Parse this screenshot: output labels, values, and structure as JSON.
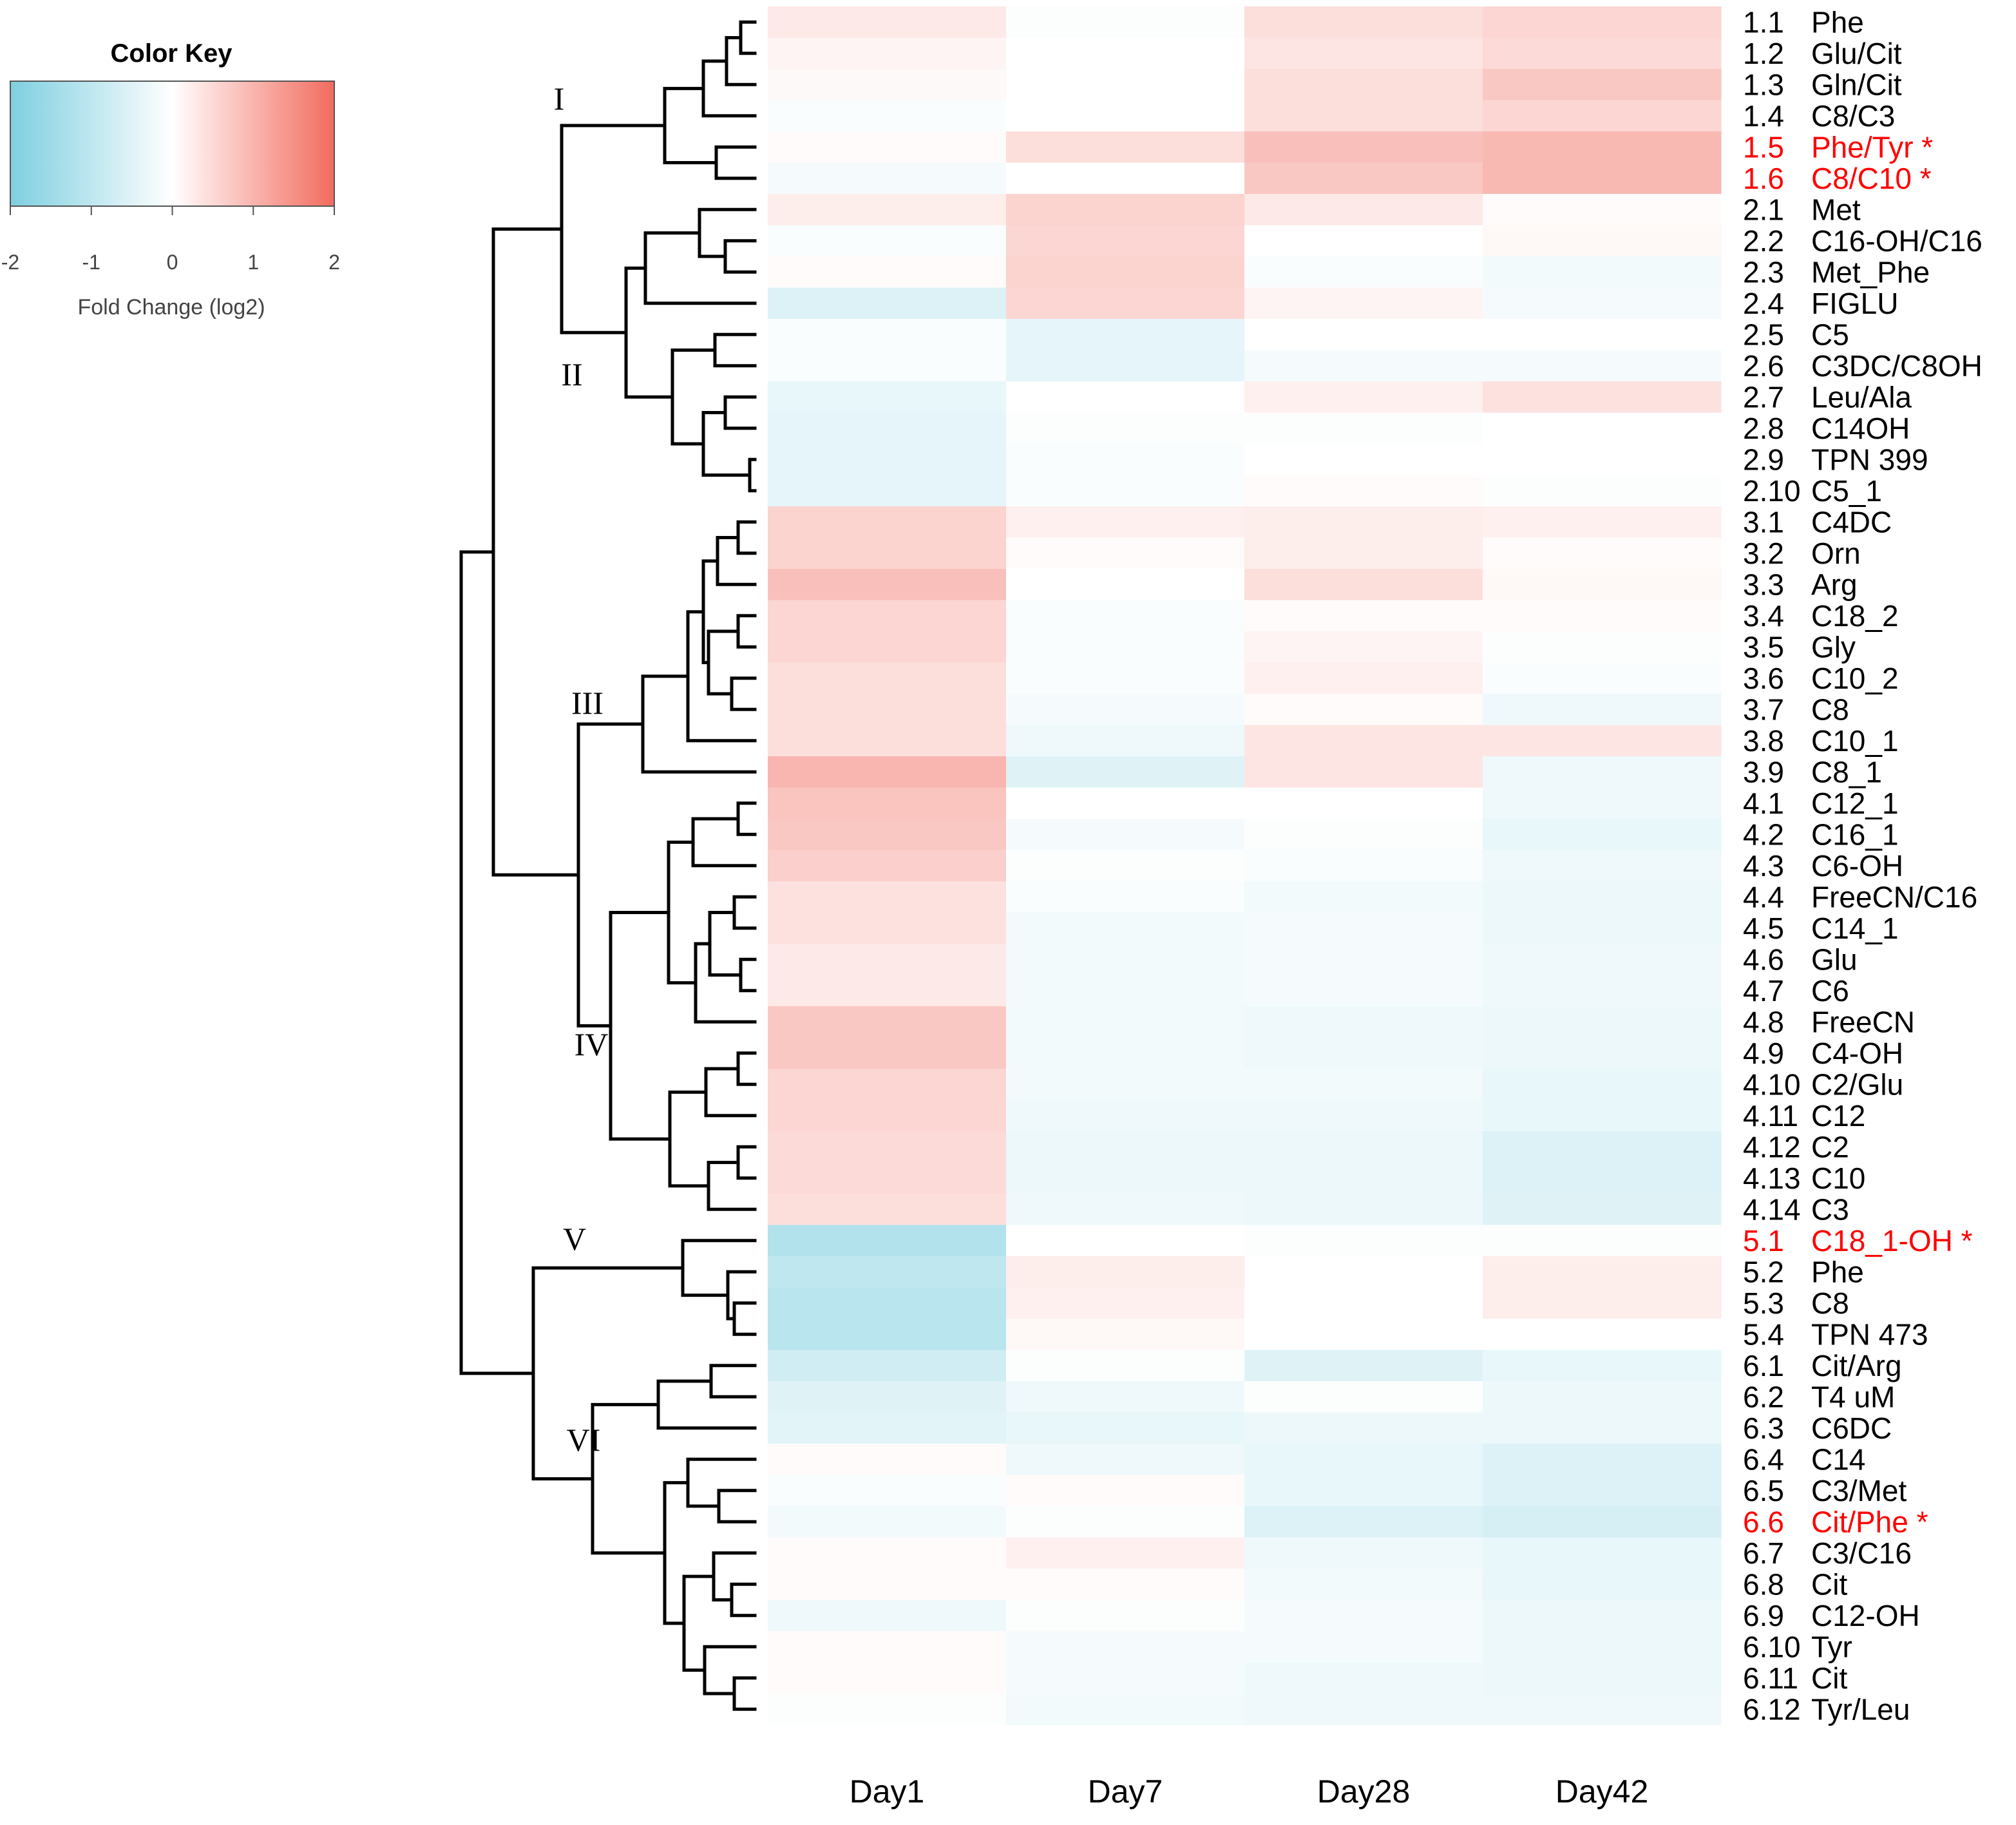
{
  "chart_data": {
    "type": "heatmap",
    "title": "",
    "columns": [
      "Day1",
      "Day7",
      "Day28",
      "Day42"
    ],
    "color_key": {
      "title": "Color Key",
      "label": "Fold Change (log2)",
      "range": [
        -2,
        2
      ],
      "ticks": [
        "-2",
        "-1",
        "0",
        "1",
        "2"
      ],
      "low_color": "#7ecfe0",
      "mid_color": "#ffffff",
      "high_color": "#f26b5e"
    },
    "highlight_color": "#ff0000",
    "clusters": [
      {
        "label": "I",
        "rows": [
          "1.1",
          "1.6"
        ]
      },
      {
        "label": "II",
        "rows": [
          "2.1",
          "2.10"
        ]
      },
      {
        "label": "III",
        "rows": [
          "3.1",
          "3.9"
        ]
      },
      {
        "label": "IV",
        "rows": [
          "4.1",
          "4.14"
        ]
      },
      {
        "label": "V",
        "rows": [
          "5.1",
          "5.4"
        ]
      },
      {
        "label": "VI",
        "rows": [
          "6.1",
          "6.12"
        ]
      }
    ],
    "rows": [
      {
        "id": "1.1",
        "name": "Phe",
        "values": [
          0.3,
          -0.05,
          0.45,
          0.55
        ],
        "highlight": false
      },
      {
        "id": "1.2",
        "name": "Glu/Cit",
        "values": [
          0.15,
          0.0,
          0.35,
          0.5
        ],
        "highlight": false
      },
      {
        "id": "1.3",
        "name": "Gln/Cit",
        "values": [
          0.08,
          0.0,
          0.45,
          0.75
        ],
        "highlight": false
      },
      {
        "id": "1.4",
        "name": "C8/C3",
        "values": [
          -0.1,
          0.0,
          0.45,
          0.55
        ],
        "highlight": false
      },
      {
        "id": "1.5",
        "name": "Phe/Tyr *",
        "values": [
          0.05,
          0.45,
          0.85,
          0.95
        ],
        "highlight": true
      },
      {
        "id": "1.6",
        "name": "C8/C10 *",
        "values": [
          -0.15,
          0.0,
          0.75,
          0.95
        ],
        "highlight": true
      },
      {
        "id": "2.1",
        "name": "Met",
        "values": [
          0.25,
          0.6,
          0.3,
          0.05
        ],
        "highlight": false
      },
      {
        "id": "2.2",
        "name": "C16-OH/C16",
        "values": [
          -0.1,
          0.55,
          0.0,
          0.1
        ],
        "highlight": false
      },
      {
        "id": "2.3",
        "name": "Met_Phe",
        "values": [
          0.05,
          0.6,
          -0.1,
          -0.2
        ],
        "highlight": false
      },
      {
        "id": "2.4",
        "name": "FIGLU",
        "values": [
          -0.55,
          0.55,
          0.15,
          -0.15
        ],
        "highlight": false
      },
      {
        "id": "2.5",
        "name": "C5",
        "values": [
          -0.1,
          -0.4,
          0.0,
          0.0
        ],
        "highlight": false
      },
      {
        "id": "2.6",
        "name": "C3DC/C8OH",
        "values": [
          -0.1,
          -0.4,
          -0.15,
          -0.15
        ],
        "highlight": false
      },
      {
        "id": "2.7",
        "name": "Leu/Ala",
        "values": [
          -0.35,
          0.0,
          0.2,
          0.4
        ],
        "highlight": false
      },
      {
        "id": "2.8",
        "name": "C14OH",
        "values": [
          -0.4,
          -0.05,
          -0.05,
          0.0
        ],
        "highlight": false
      },
      {
        "id": "2.9",
        "name": "TPN 399",
        "values": [
          -0.4,
          -0.1,
          0.0,
          0.0
        ],
        "highlight": false
      },
      {
        "id": "2.10",
        "name": "C5_1",
        "values": [
          -0.4,
          -0.1,
          0.05,
          -0.05
        ],
        "highlight": false
      },
      {
        "id": "3.1",
        "name": "C4DC",
        "values": [
          0.6,
          0.2,
          0.25,
          0.2
        ],
        "highlight": false
      },
      {
        "id": "3.2",
        "name": "Orn",
        "values": [
          0.6,
          0.05,
          0.25,
          0.05
        ],
        "highlight": false
      },
      {
        "id": "3.3",
        "name": "Arg",
        "values": [
          0.85,
          0.0,
          0.45,
          0.1
        ],
        "highlight": false
      },
      {
        "id": "3.4",
        "name": "C18_2",
        "values": [
          0.55,
          -0.1,
          0.05,
          0.05
        ],
        "highlight": false
      },
      {
        "id": "3.5",
        "name": "Gly",
        "values": [
          0.55,
          -0.1,
          0.15,
          -0.05
        ],
        "highlight": false
      },
      {
        "id": "3.6",
        "name": "C10_2",
        "values": [
          0.45,
          -0.1,
          0.2,
          -0.1
        ],
        "highlight": false
      },
      {
        "id": "3.7",
        "name": "C8",
        "values": [
          0.45,
          -0.15,
          0.05,
          -0.25
        ],
        "highlight": false
      },
      {
        "id": "3.8",
        "name": "C10_1",
        "values": [
          0.45,
          -0.25,
          0.35,
          0.35
        ],
        "highlight": false
      },
      {
        "id": "3.9",
        "name": "C8_1",
        "values": [
          1.0,
          -0.5,
          0.35,
          -0.25
        ],
        "highlight": false
      },
      {
        "id": "4.1",
        "name": "C12_1",
        "values": [
          0.8,
          0.0,
          0.0,
          -0.25
        ],
        "highlight": false
      },
      {
        "id": "4.2",
        "name": "C16_1",
        "values": [
          0.75,
          -0.15,
          -0.05,
          -0.35
        ],
        "highlight": false
      },
      {
        "id": "4.3",
        "name": "C6-OH",
        "values": [
          0.65,
          -0.05,
          -0.1,
          -0.25
        ],
        "highlight": false
      },
      {
        "id": "4.4",
        "name": "FreeCN/C16",
        "values": [
          0.4,
          -0.1,
          -0.2,
          -0.3
        ],
        "highlight": false
      },
      {
        "id": "4.5",
        "name": "C14_1",
        "values": [
          0.4,
          -0.2,
          -0.15,
          -0.3
        ],
        "highlight": false
      },
      {
        "id": "4.6",
        "name": "Glu",
        "values": [
          0.3,
          -0.2,
          -0.15,
          -0.25
        ],
        "highlight": false
      },
      {
        "id": "4.7",
        "name": "C6",
        "values": [
          0.3,
          -0.2,
          -0.15,
          -0.25
        ],
        "highlight": false
      },
      {
        "id": "4.8",
        "name": "FreeCN",
        "values": [
          0.75,
          -0.2,
          -0.25,
          -0.3
        ],
        "highlight": false
      },
      {
        "id": "4.9",
        "name": "C4-OH",
        "values": [
          0.75,
          -0.2,
          -0.25,
          -0.3
        ],
        "highlight": false
      },
      {
        "id": "4.10",
        "name": "C2/Glu",
        "values": [
          0.55,
          -0.2,
          -0.2,
          -0.35
        ],
        "highlight": false
      },
      {
        "id": "4.11",
        "name": "C12",
        "values": [
          0.55,
          -0.25,
          -0.25,
          -0.35
        ],
        "highlight": false
      },
      {
        "id": "4.12",
        "name": "C2",
        "values": [
          0.5,
          -0.3,
          -0.3,
          -0.55
        ],
        "highlight": false
      },
      {
        "id": "4.13",
        "name": "C10",
        "values": [
          0.5,
          -0.3,
          -0.3,
          -0.55
        ],
        "highlight": false
      },
      {
        "id": "4.14",
        "name": "C3",
        "values": [
          0.45,
          -0.25,
          -0.3,
          -0.5
        ],
        "highlight": false
      },
      {
        "id": "5.1",
        "name": "C18_1-OH *",
        "values": [
          -1.2,
          0.0,
          -0.05,
          -0.05
        ],
        "highlight": true
      },
      {
        "id": "5.2",
        "name": "Phe",
        "values": [
          -1.0,
          0.25,
          0.0,
          0.25
        ],
        "highlight": false
      },
      {
        "id": "5.3",
        "name": "C8",
        "values": [
          -1.1,
          0.2,
          0.0,
          0.25
        ],
        "highlight": false
      },
      {
        "id": "5.4",
        "name": "TPN 473",
        "values": [
          -1.1,
          0.1,
          0.0,
          0.0
        ],
        "highlight": false
      },
      {
        "id": "6.1",
        "name": "Cit/Arg",
        "values": [
          -0.75,
          -0.05,
          -0.5,
          -0.35
        ],
        "highlight": false
      },
      {
        "id": "6.2",
        "name": "T4 uM",
        "values": [
          -0.5,
          -0.25,
          -0.05,
          -0.3
        ],
        "highlight": false
      },
      {
        "id": "6.3",
        "name": "C6DC",
        "values": [
          -0.45,
          -0.35,
          -0.3,
          -0.3
        ],
        "highlight": false
      },
      {
        "id": "6.4",
        "name": "C14",
        "values": [
          0.05,
          -0.25,
          -0.35,
          -0.55
        ],
        "highlight": false
      },
      {
        "id": "6.5",
        "name": "C3/Met",
        "values": [
          -0.1,
          0.05,
          -0.35,
          -0.55
        ],
        "highlight": false
      },
      {
        "id": "6.6",
        "name": "Cit/Phe *",
        "values": [
          -0.2,
          -0.05,
          -0.55,
          -0.65
        ],
        "highlight": true
      },
      {
        "id": "6.7",
        "name": "C3/C16",
        "values": [
          0.05,
          0.2,
          -0.25,
          -0.35
        ],
        "highlight": false
      },
      {
        "id": "6.8",
        "name": "Cit",
        "values": [
          0.05,
          0.05,
          -0.2,
          -0.35
        ],
        "highlight": false
      },
      {
        "id": "6.9",
        "name": "C12-OH",
        "values": [
          -0.25,
          -0.05,
          -0.15,
          -0.3
        ],
        "highlight": false
      },
      {
        "id": "6.10",
        "name": "Tyr",
        "values": [
          0.05,
          -0.15,
          -0.15,
          -0.3
        ],
        "highlight": false
      },
      {
        "id": "6.11",
        "name": "Cit",
        "values": [
          0.05,
          -0.15,
          -0.25,
          -0.3
        ],
        "highlight": false
      },
      {
        "id": "6.12",
        "name": "Tyr/Leu",
        "values": [
          -0.05,
          -0.2,
          -0.25,
          -0.25
        ],
        "highlight": false
      }
    ]
  }
}
